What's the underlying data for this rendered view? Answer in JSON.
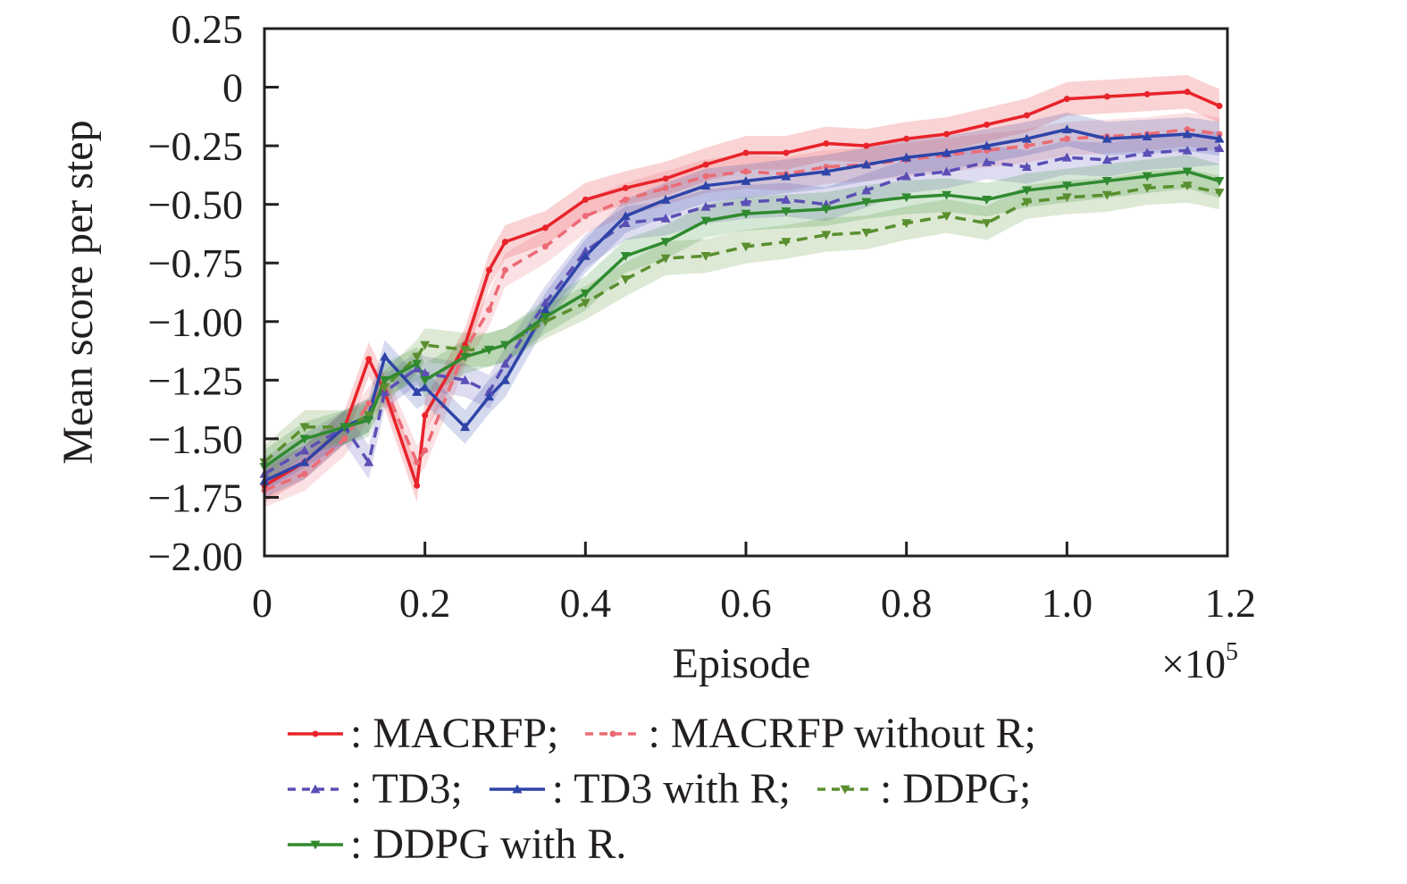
{
  "chart_data": {
    "type": "line",
    "title": "",
    "xlabel": "Episode",
    "x_multiplier_label": "×10",
    "x_multiplier_exponent": "5",
    "ylabel": "Mean score per step",
    "xlim": [
      0,
      1.2
    ],
    "ylim": [
      -2.0,
      0.25
    ],
    "x_ticks": [
      0,
      0.2,
      0.4,
      0.6,
      0.8,
      1.0,
      1.2
    ],
    "x_tick_labels": [
      "0",
      "0.2",
      "0.4",
      "0.6",
      "0.8",
      "1.0",
      "1.2"
    ],
    "y_ticks": [
      0.25,
      0,
      -0.25,
      -0.5,
      -0.75,
      -1.0,
      -1.25,
      -1.5,
      -1.75,
      -2.0
    ],
    "y_tick_labels": [
      "0.25",
      "0",
      "−0.25",
      "−0.50",
      "−0.75",
      "−1.00",
      "−1.25",
      "−1.50",
      "−1.75",
      "−2.00"
    ],
    "grid": false,
    "legend_position": "below",
    "x": [
      0.0,
      0.05,
      0.1,
      0.13,
      0.15,
      0.19,
      0.2,
      0.25,
      0.28,
      0.3,
      0.35,
      0.4,
      0.45,
      0.5,
      0.55,
      0.6,
      0.65,
      0.7,
      0.75,
      0.8,
      0.85,
      0.9,
      0.95,
      1.0,
      1.05,
      1.1,
      1.15,
      1.19
    ],
    "series": [
      {
        "name": "MACRFP",
        "color": "#e8232a",
        "style": "solid",
        "marker": "dot",
        "values": [
          -1.7,
          -1.6,
          -1.45,
          -1.16,
          -1.3,
          -1.7,
          -1.4,
          -1.1,
          -0.78,
          -0.66,
          -0.6,
          -0.48,
          -0.43,
          -0.39,
          -0.33,
          -0.28,
          -0.28,
          -0.24,
          -0.25,
          -0.22,
          -0.2,
          -0.16,
          -0.12,
          -0.05,
          -0.04,
          -0.03,
          -0.02,
          -0.08
        ]
      },
      {
        "name": "MACRFP without R",
        "color": "#ec6a74",
        "style": "dashed",
        "marker": "dot",
        "values": [
          -1.72,
          -1.65,
          -1.5,
          -1.35,
          -1.28,
          -1.6,
          -1.55,
          -1.12,
          -0.95,
          -0.78,
          -0.68,
          -0.55,
          -0.48,
          -0.43,
          -0.38,
          -0.36,
          -0.37,
          -0.34,
          -0.33,
          -0.31,
          -0.29,
          -0.27,
          -0.25,
          -0.22,
          -0.21,
          -0.2,
          -0.18,
          -0.2
        ]
      },
      {
        "name": "TD3",
        "color": "#5b4fb5",
        "style": "dashed",
        "marker": "triangle-up",
        "values": [
          -1.65,
          -1.55,
          -1.45,
          -1.6,
          -1.3,
          -1.2,
          -1.22,
          -1.25,
          -1.3,
          -1.18,
          -0.92,
          -0.7,
          -0.58,
          -0.56,
          -0.51,
          -0.49,
          -0.48,
          -0.5,
          -0.44,
          -0.38,
          -0.36,
          -0.32,
          -0.34,
          -0.3,
          -0.31,
          -0.28,
          -0.27,
          -0.26
        ]
      },
      {
        "name": "TD3 with R",
        "color": "#2e44a8",
        "style": "solid",
        "marker": "triangle-up",
        "values": [
          -1.68,
          -1.6,
          -1.45,
          -1.4,
          -1.15,
          -1.3,
          -1.28,
          -1.45,
          -1.32,
          -1.25,
          -0.95,
          -0.72,
          -0.55,
          -0.48,
          -0.42,
          -0.4,
          -0.38,
          -0.36,
          -0.33,
          -0.3,
          -0.28,
          -0.25,
          -0.22,
          -0.18,
          -0.22,
          -0.21,
          -0.2,
          -0.22
        ]
      },
      {
        "name": "DDPG",
        "color": "#5a8f2f",
        "style": "dashed",
        "marker": "triangle-down",
        "values": [
          -1.6,
          -1.45,
          -1.45,
          -1.4,
          -1.28,
          -1.15,
          -1.1,
          -1.12,
          -1.12,
          -1.1,
          -1.0,
          -0.92,
          -0.82,
          -0.73,
          -0.72,
          -0.68,
          -0.66,
          -0.63,
          -0.62,
          -0.58,
          -0.55,
          -0.58,
          -0.49,
          -0.47,
          -0.46,
          -0.43,
          -0.42,
          -0.45
        ]
      },
      {
        "name": "DDPG with R",
        "color": "#2f8a2f",
        "style": "solid",
        "marker": "triangle-down",
        "values": [
          -1.62,
          -1.5,
          -1.45,
          -1.42,
          -1.25,
          -1.18,
          -1.25,
          -1.15,
          -1.12,
          -1.1,
          -0.98,
          -0.88,
          -0.72,
          -0.66,
          -0.57,
          -0.54,
          -0.53,
          -0.52,
          -0.49,
          -0.47,
          -0.46,
          -0.48,
          -0.44,
          -0.42,
          -0.4,
          -0.38,
          -0.36,
          -0.4
        ]
      }
    ]
  },
  "legend": {
    "rows": [
      [
        {
          "label": ": MACRFP;",
          "series": 0
        },
        {
          "label": ": MACRFP without R;",
          "series": 1
        }
      ],
      [
        {
          "label": ": TD3;",
          "series": 2
        },
        {
          "label": ": TD3 with R;",
          "series": 3
        },
        {
          "label": ": DDPG;",
          "series": 4
        }
      ],
      [
        {
          "label": ": DDPG with R.",
          "series": 5
        }
      ]
    ]
  }
}
